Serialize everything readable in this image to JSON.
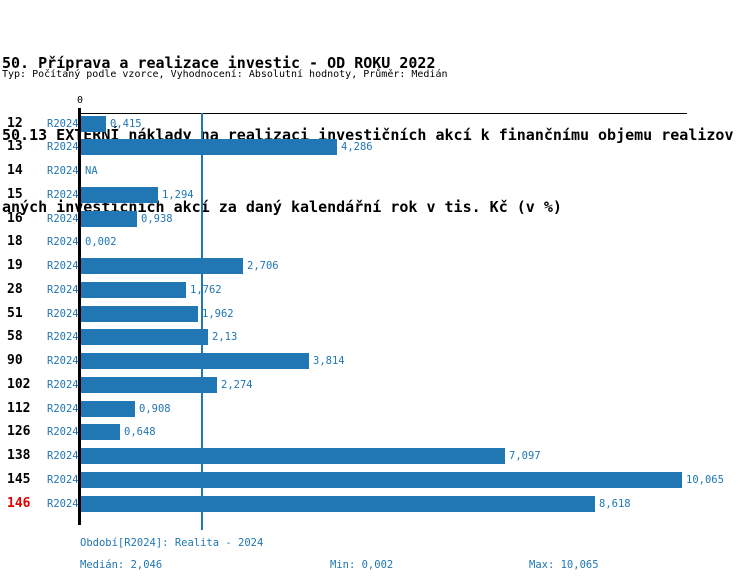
{
  "header": {
    "title_line1": "50. Příprava a realizace investic - OD ROKU 2022",
    "title_line2": "50.13 EXTERNÍ náklady na realizaci investičních akcí k finančnímu objemu realizov",
    "title_line3": "aných investičních akcí za daný kalendářní rok v tis. Kč (v %)",
    "meta": "Typ: Počítaný podle vzorce, Vyhodnocení: Absolutní hodnoty, Průměr: Medián"
  },
  "chart_data": {
    "type": "bar",
    "orientation": "horizontal",
    "title": "50.13 EXTERNÍ náklady na realizaci investičních akcí k finančnímu objemu realizovaných investičních akcí za daný kalendářní rok v tis. Kč (v %)",
    "categories": [
      "12",
      "13",
      "14",
      "15",
      "16",
      "18",
      "19",
      "28",
      "51",
      "58",
      "90",
      "102",
      "112",
      "126",
      "138",
      "145",
      "146"
    ],
    "series_label": "R2024",
    "values": [
      0.415,
      4.286,
      null,
      1.294,
      0.938,
      0.002,
      2.706,
      1.762,
      1.962,
      2.13,
      3.814,
      2.274,
      0.908,
      0.648,
      7.097,
      10.065,
      8.618
    ],
    "value_labels": [
      "0,415",
      "4,286",
      "NA",
      "1,294",
      "0,938",
      "0,002",
      "2,706",
      "1,762",
      "1,962",
      "2,13",
      "3,814",
      "2,274",
      "0,908",
      "0,648",
      "7,097",
      "10,065",
      "8,618"
    ],
    "highlighted_category": "146",
    "axis": {
      "zero_label": "0",
      "xlim": [
        0,
        10.2
      ],
      "median_line_value": 2.046,
      "grid": false,
      "legend": "none"
    },
    "bar_color": "#2077b4",
    "text_color": "#2077b4",
    "highlight_color": "#e00000",
    "median_value": 2.046,
    "min_value": 0.002,
    "max_value": 10.065
  },
  "footer": {
    "period": "Období[R2024]: Realita - 2024",
    "median": "Medián: 2,046",
    "min": "Min: 0,002",
    "max": "Max: 10,065"
  }
}
